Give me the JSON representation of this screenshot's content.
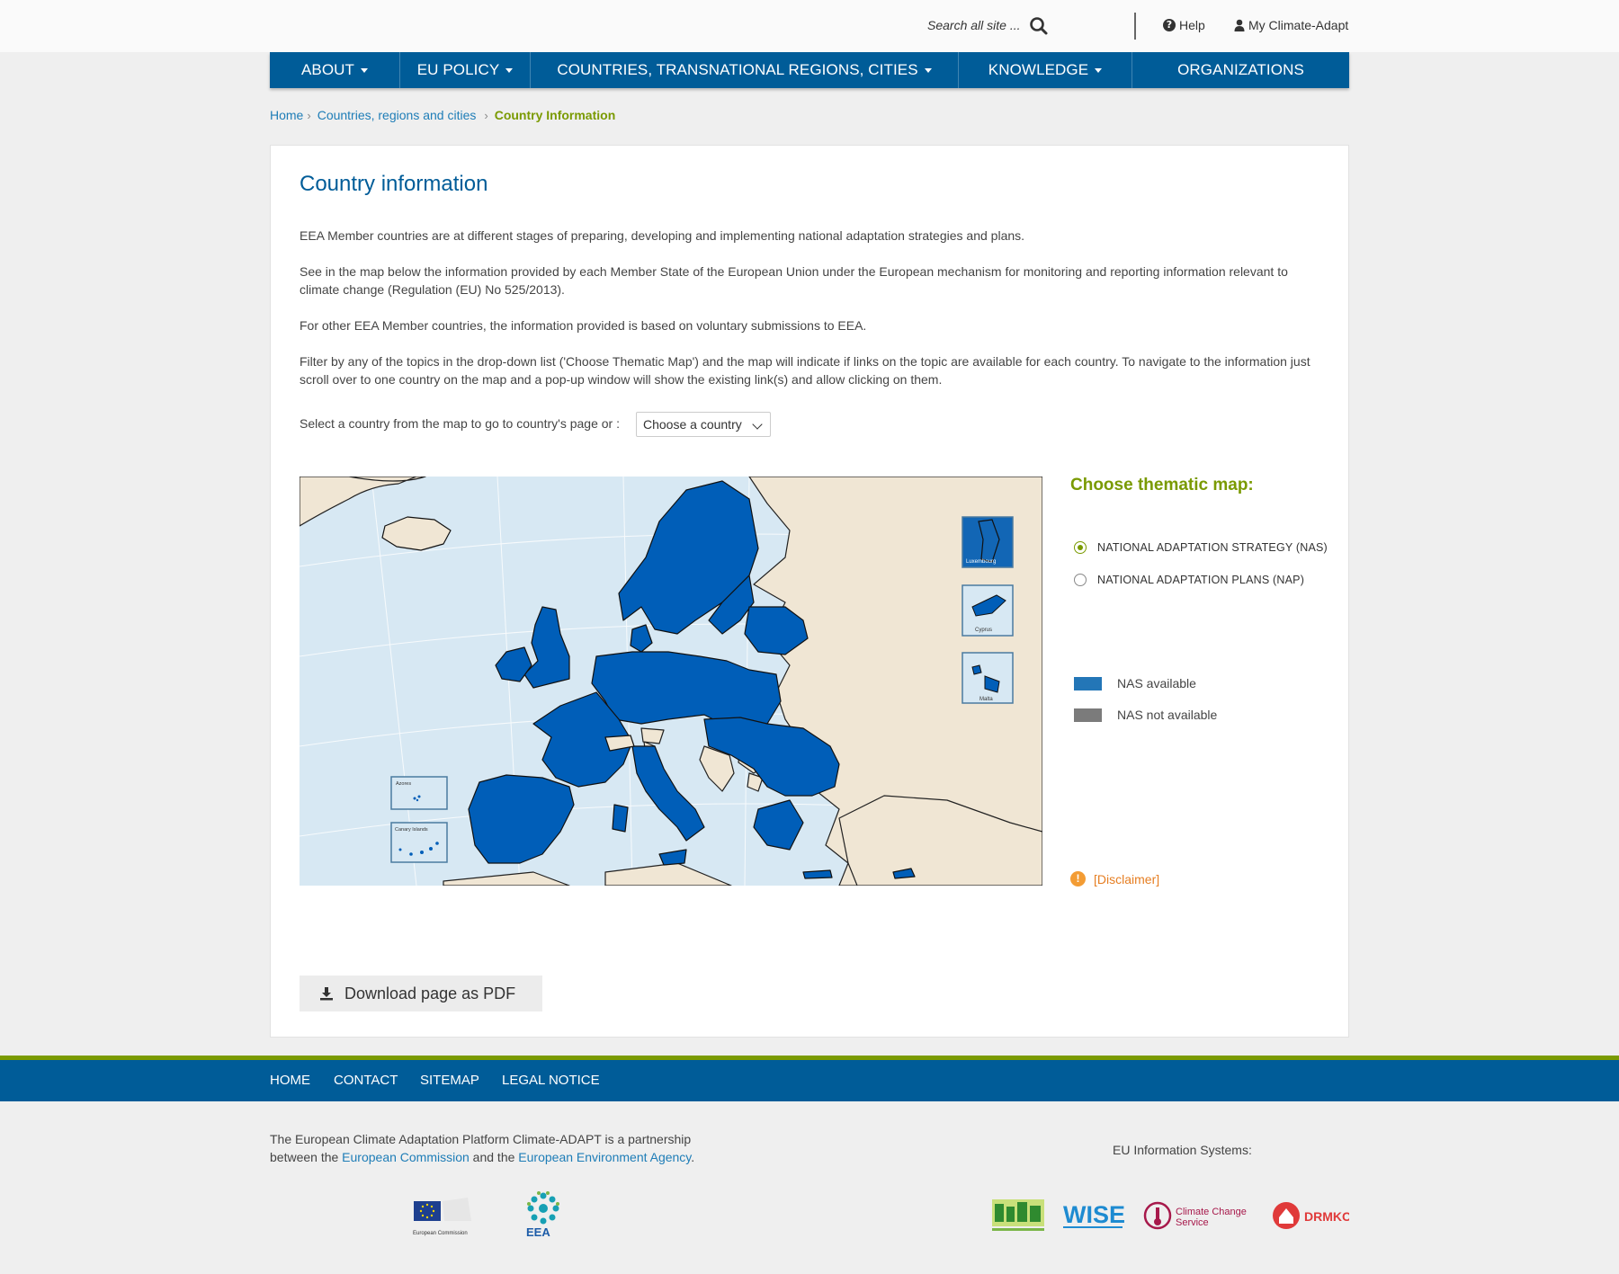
{
  "header": {
    "search_placeholder": "Search all site ...",
    "help_label": "Help",
    "account_label": "My Climate-Adapt"
  },
  "nav": {
    "items": [
      {
        "label": "ABOUT",
        "has_dropdown": true
      },
      {
        "label": "EU POLICY",
        "has_dropdown": true
      },
      {
        "label": "COUNTRIES, TRANSNATIONAL REGIONS, CITIES",
        "has_dropdown": true
      },
      {
        "label": "KNOWLEDGE",
        "has_dropdown": true
      },
      {
        "label": "ORGANIZATIONS",
        "has_dropdown": false
      }
    ]
  },
  "breadcrumb": {
    "home": "Home",
    "parent": "Countries, regions and cities",
    "current": "Country Information"
  },
  "main": {
    "title": "Country information",
    "paragraphs": [
      "EEA Member countries are at different stages of preparing, developing and implementing national adaptation strategies and plans.",
      "See in the map below the information provided by each Member State of the European Union under the European mechanism for monitoring and reporting information relevant to climate change (Regulation (EU) No 525/2013).",
      "For other EEA Member countries, the information provided is based on voluntary submissions to EEA.",
      "Filter by any of the topics in the drop-down list ('Choose Thematic Map') and the map will indicate if links on the topic are available for each country. To navigate to the information just scroll over to one country on the map and a pop-up window will show the existing link(s) and allow clicking on them."
    ],
    "select_label": "Select a country from the map to go to country's page or :",
    "select_value": "Choose a country",
    "pdf_button": "Download page as PDF"
  },
  "map": {
    "insets": {
      "luxembourg": "Luxembourg",
      "cyprus": "Cyprus",
      "malta": "Malta",
      "azores": "Azores",
      "canary": "Canary Islands"
    },
    "colors": {
      "sea": "#d7e8f3",
      "available": "#005eb8",
      "other_land": "#f0e6d4",
      "border": "#222222"
    }
  },
  "thematic": {
    "title": "Choose thematic map:",
    "options": [
      {
        "label": "NATIONAL ADAPTATION STRATEGY (NAS)",
        "selected": true
      },
      {
        "label": "NATIONAL ADAPTATION PLANS (NAP)",
        "selected": false
      }
    ],
    "legend": [
      {
        "label": "NAS available",
        "color": "#2376b7"
      },
      {
        "label": "NAS not available",
        "color": "#7b7b7b"
      }
    ],
    "disclaimer": "[Disclaimer]"
  },
  "footer": {
    "links": [
      "HOME",
      "CONTACT",
      "SITEMAP",
      "LEGAL NOTICE"
    ],
    "text_before": "The European Climate Adaptation Platform Climate-ADAPT is a partnership between the ",
    "link_ec": "European Commission",
    "text_mid": " and the ",
    "link_eea": "European Environment Agency",
    "text_end": ".",
    "eu_systems_label": "EU Information Systems:",
    "logos": {
      "ec": "European Commission",
      "eea": "EEA",
      "wise": "WISE",
      "ccs_line1": "Climate Change",
      "ccs_line2": "Service",
      "drmkc": "DRMKC"
    }
  }
}
